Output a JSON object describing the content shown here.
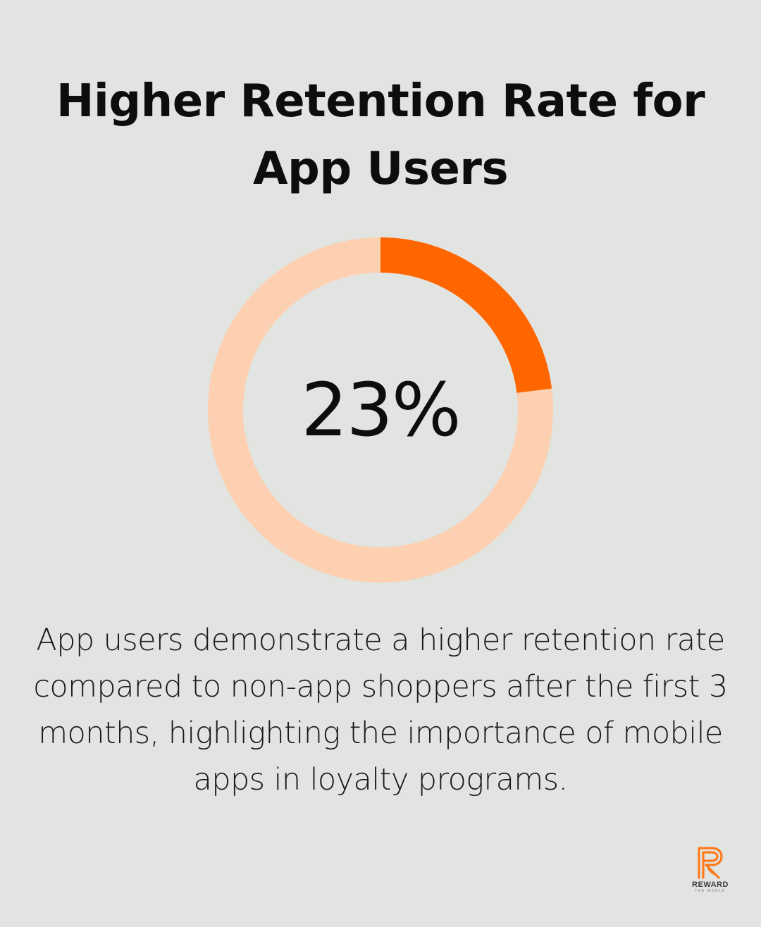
{
  "title": "Higher Retention Rate for App Users",
  "chart_data": {
    "type": "pie",
    "variant": "donut",
    "value": 23,
    "max": 100,
    "center_label": "23%",
    "colors": {
      "filled": "#ff6600",
      "track": "#fcd0b0"
    }
  },
  "description": "App users demonstrate a higher retention rate compared to non-app shoppers after the first 3 months, highlighting the importance of mobile apps in loyalty programs.",
  "logo": {
    "wordmark": "REWARD",
    "tagline": "THE WORLD",
    "color": "#ff7a1a",
    "icon": "r-logo-icon"
  }
}
